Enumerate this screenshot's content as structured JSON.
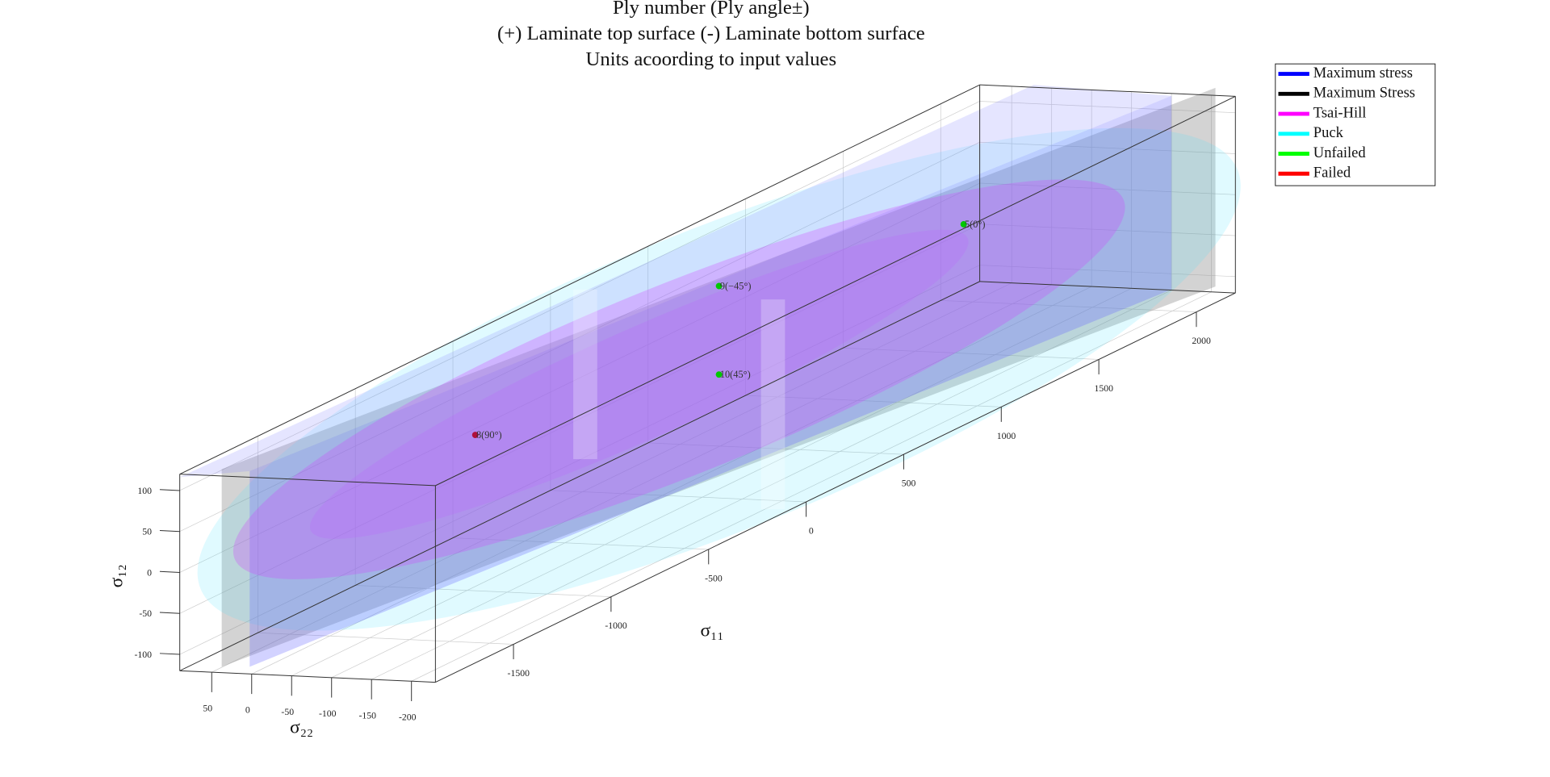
{
  "chart_data": {
    "type": "scatter3d",
    "title": [
      "Ply number (Ply angle±)",
      "(+) Laminate top surface (-) Laminate bottom surface",
      "Units acoording to input values"
    ],
    "xlabel": "σ₁₁",
    "ylabel": "σ₂₂",
    "zlabel": "σ₁₂",
    "xlim": [
      -1900,
      2200
    ],
    "xticks": [
      -1500,
      -1000,
      -500,
      0,
      500,
      1000,
      1500,
      2000
    ],
    "ylim": [
      -230,
      90
    ],
    "yticks": [
      50,
      0,
      -50,
      -100,
      -150,
      -200
    ],
    "zlim": [
      -120,
      120
    ],
    "zticks": [
      100,
      50,
      0,
      -50,
      -100
    ],
    "grid": true,
    "legend": [
      {
        "name": "Maximum stress",
        "color": "#0000ff"
      },
      {
        "name": "Maximum Stress",
        "color": "#000000"
      },
      {
        "name": "Tsai-Hill",
        "color": "#ff00ff"
      },
      {
        "name": "Puck",
        "color": "#00ffff"
      },
      {
        "name": "Unfailed",
        "color": "#00ff00"
      },
      {
        "name": "Failed",
        "color": "#ff0000"
      }
    ],
    "legend_position": "upper right",
    "points": [
      {
        "label": "8(90°)",
        "x": -754,
        "y": 0,
        "z": 39,
        "color": "#b0103c"
      },
      {
        "label": "10(45°)",
        "x": 495,
        "y": 0,
        "z": -32,
        "color": "#00c800"
      },
      {
        "label": "9(−45°)",
        "x": 495,
        "y": 0,
        "z": 76,
        "color": "#00c800"
      },
      {
        "label": "5(0°)",
        "x": 1749,
        "y": 0,
        "z": 6,
        "color": "#00c800"
      }
    ]
  }
}
